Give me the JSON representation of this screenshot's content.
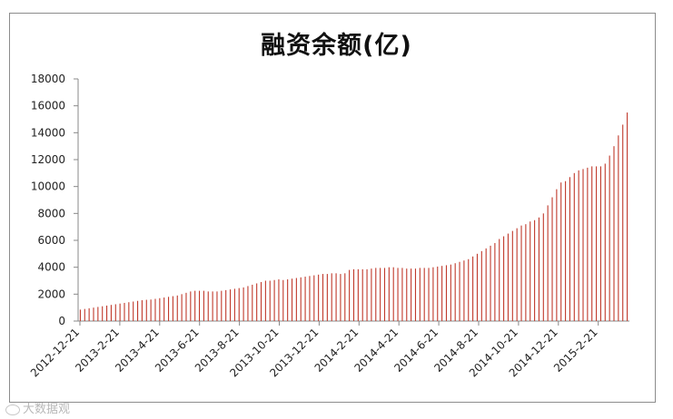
{
  "chart_data": {
    "type": "bar",
    "title": "融资余额(亿)",
    "xlabel": "",
    "ylabel": "",
    "ylim": [
      0,
      18000
    ],
    "yticks": [
      0,
      2000,
      4000,
      6000,
      8000,
      10000,
      12000,
      14000,
      16000,
      18000
    ],
    "x_tick_labels": [
      "2012-12-21",
      "2013-2-21",
      "2013-4-21",
      "2013-6-21",
      "2013-8-21",
      "2013-10-21",
      "2013-12-21",
      "2014-2-21",
      "2014-4-21",
      "2014-6-21",
      "2014-8-21",
      "2014-10-21",
      "2014-12-21",
      "2015-2-21"
    ],
    "bar_color": "#c0392b",
    "grid": false,
    "legend": "none",
    "series": [
      {
        "values": [
          850,
          900,
          950,
          1000,
          1050,
          1100,
          1150,
          1200,
          1250,
          1300,
          1350,
          1400,
          1450,
          1500,
          1550,
          1580,
          1600,
          1650,
          1700,
          1750,
          1800,
          1850,
          1900,
          2000,
          2100,
          2200,
          2250,
          2250,
          2250,
          2200,
          2200,
          2200,
          2250,
          2300,
          2350,
          2400,
          2450,
          2500,
          2600,
          2700,
          2800,
          2900,
          3000,
          3000,
          3050,
          3100,
          3050,
          3100,
          3150,
          3200,
          3250,
          3300,
          3350,
          3400,
          3450,
          3500,
          3500,
          3550,
          3550,
          3500,
          3550,
          3800,
          3850,
          3850,
          3850,
          3850,
          3900,
          3950,
          3950,
          3950,
          4000,
          4000,
          3950,
          3950,
          3900,
          3900,
          3900,
          3950,
          3950,
          3950,
          4000,
          4050,
          4100,
          4150,
          4200,
          4300,
          4400,
          4500,
          4600,
          4800,
          5000,
          5200,
          5400,
          5600,
          5800,
          6100,
          6300,
          6500,
          6700,
          6900,
          7100,
          7200,
          7400,
          7500,
          7700,
          8000,
          8600,
          9200,
          9800,
          10300,
          10400,
          10700,
          11000,
          11200,
          11300,
          11400,
          11500,
          11500,
          11500,
          11700,
          12300,
          13000,
          13800,
          14600,
          15500
        ]
      }
    ]
  },
  "watermark": {
    "text": "大数据观"
  }
}
